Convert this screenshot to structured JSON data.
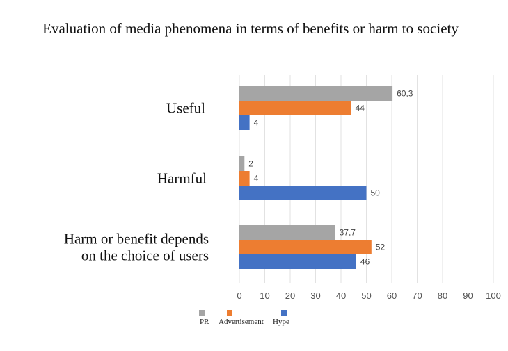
{
  "chart_data": {
    "type": "bar",
    "orientation": "horizontal",
    "title": "Evaluation of media phenomena in terms of benefits or harm to society",
    "categories": [
      [
        "Useful"
      ],
      [
        "Harmful"
      ],
      [
        "Harm or benefit depends",
        "on the choice of users"
      ]
    ],
    "series": [
      {
        "name": "PR",
        "color": "#a5a5a5",
        "values": [
          60.3,
          2,
          37.7
        ],
        "labels": [
          "60,3",
          "2",
          "37,7"
        ]
      },
      {
        "name": "Advertisement",
        "color": "#ed7d31",
        "values": [
          44,
          4,
          52
        ],
        "labels": [
          "44",
          "4",
          "52"
        ]
      },
      {
        "name": "Hype",
        "color": "#4472c4",
        "values": [
          4,
          50,
          46
        ],
        "labels": [
          "4",
          "50",
          "46"
        ]
      }
    ],
    "xlim": [
      0,
      100
    ],
    "ticks": [
      0,
      10,
      20,
      30,
      40,
      50,
      60,
      70,
      80,
      90,
      100
    ],
    "grid": true,
    "legend_position": "bottom-left"
  }
}
